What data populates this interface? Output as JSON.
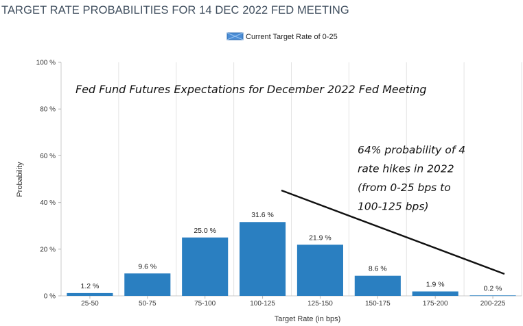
{
  "page": {
    "title": "TARGET RATE PROBABILITIES FOR 14 DEC 2022 FED MEETING"
  },
  "legend": {
    "label": "Current Target Rate of 0-25",
    "swatch_color": "#4b8dd6"
  },
  "annotations": {
    "headline": "Fed Fund Futures Expectations for December 2022 Fed Meeting",
    "note_lines": [
      "64% probability of 4",
      "rate hikes in 2022",
      "(from 0-25 bps to",
      "100-125 bps)"
    ]
  },
  "chart_data": {
    "type": "bar",
    "categories": [
      "25-50",
      "50-75",
      "75-100",
      "100-125",
      "125-150",
      "150-175",
      "175-200",
      "200-225"
    ],
    "series": [
      {
        "name": "",
        "values": [
          1.2,
          9.6,
          25.0,
          31.6,
          21.9,
          8.6,
          1.9,
          0.2
        ],
        "value_labels": [
          "1.2 %",
          "9.6 %",
          "25.0 %",
          "31.6 %",
          "21.9 %",
          "8.6 %",
          "1.9 %",
          "0.2 %"
        ]
      }
    ],
    "xlabel": "Target Rate (in bps)",
    "ylabel": "Probability",
    "ylim": [
      0,
      100
    ],
    "yticks": [
      0,
      20,
      40,
      60,
      80,
      100
    ],
    "ytick_labels": [
      "0 %",
      "20 %",
      "40 %",
      "60 %",
      "80 %",
      "100 %"
    ],
    "grid": "vertical",
    "legend_position": "top-center",
    "bar_color": "#2a7fc1"
  }
}
